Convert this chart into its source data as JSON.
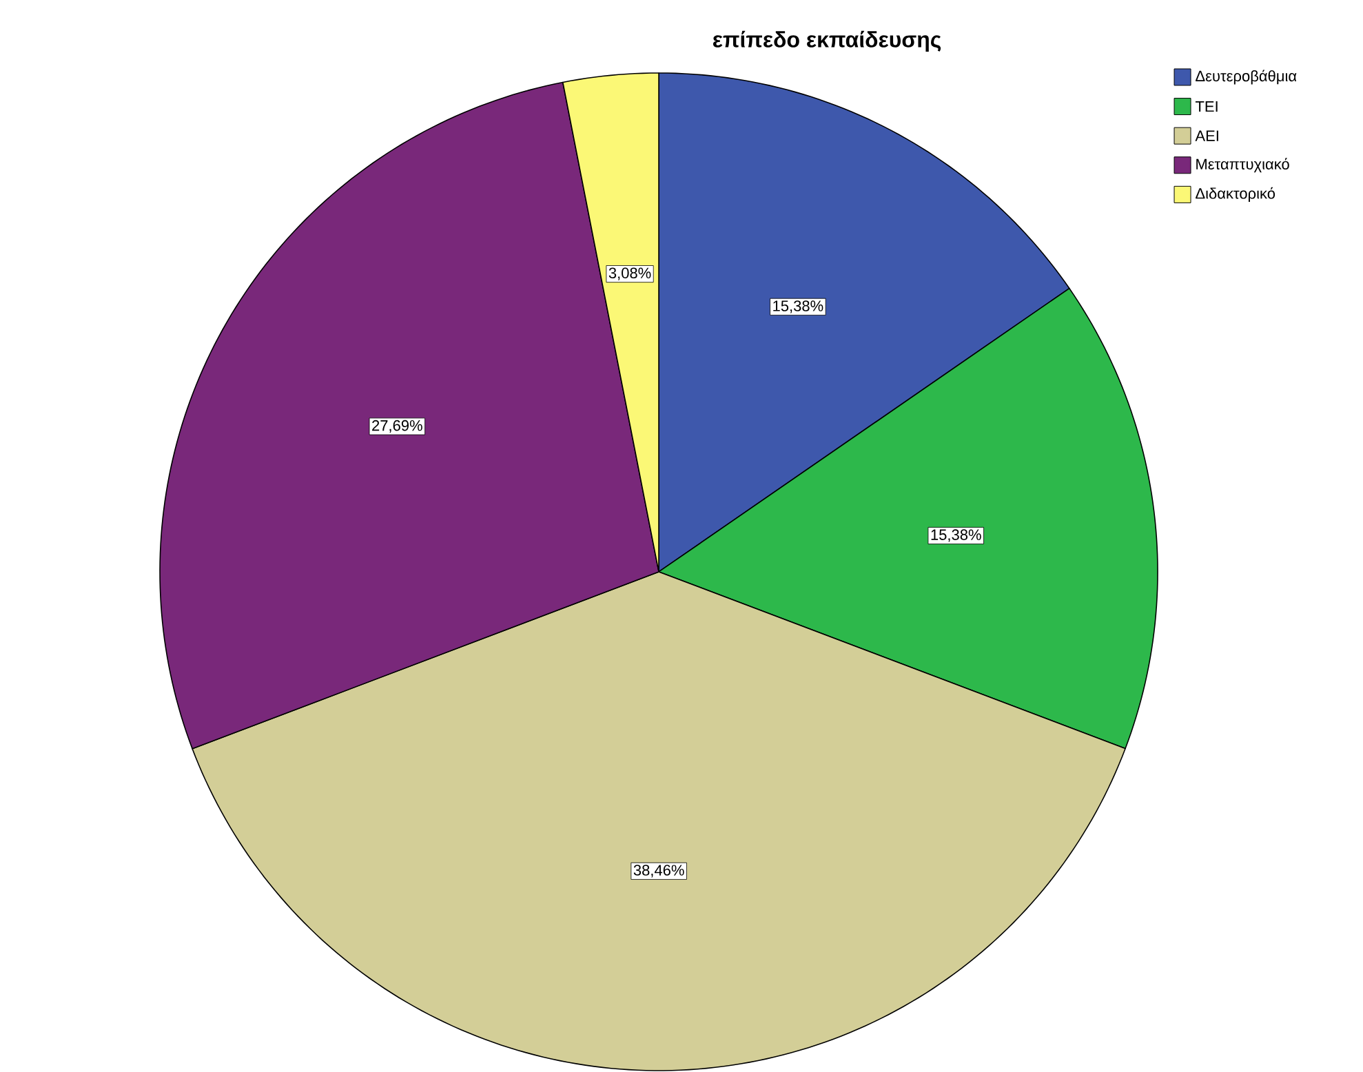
{
  "chart_data": {
    "type": "pie",
    "title": "επίπεδο εκπαίδευσης",
    "categories": [
      "Δευτεροβάθμια",
      "ΤΕΙ",
      "ΑΕΙ",
      "Μεταπτυχιακό",
      "Διδακτορικό"
    ],
    "values": [
      15.38,
      15.38,
      38.46,
      27.69,
      3.08
    ],
    "value_labels": [
      "15,38%",
      "15,38%",
      "38,46%",
      "27,69%",
      "3,08%"
    ],
    "colors": [
      "#3e58ac",
      "#2db84b",
      "#d3ce97",
      "#79287a",
      "#fbf876"
    ],
    "legend": "top right"
  }
}
